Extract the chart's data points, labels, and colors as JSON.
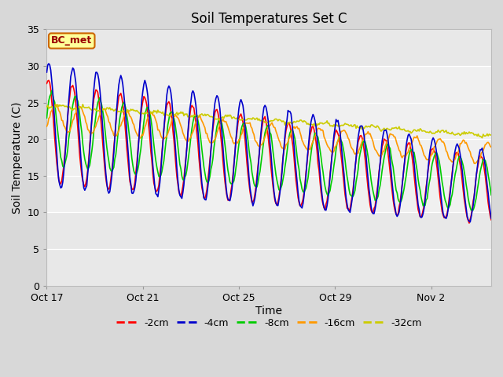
{
  "title": "Soil Temperatures Set C",
  "xlabel": "Time",
  "ylabel": "Soil Temperature (C)",
  "ylim": [
    0,
    35
  ],
  "yticks": [
    0,
    5,
    10,
    15,
    20,
    25,
    30,
    35
  ],
  "legend_labels": [
    "-2cm",
    "-4cm",
    "-8cm",
    "-16cm",
    "-32cm"
  ],
  "legend_colors": [
    "#ff0000",
    "#0000cc",
    "#00cc00",
    "#ff9900",
    "#cccc00"
  ],
  "annotation_text": "BC_met",
  "annotation_bg": "#ffff99",
  "annotation_border": "#cc6600",
  "fig_bg": "#d8d8d8",
  "axes_bg": "#e8e8e8",
  "inner_band_color": "#d0d0d0",
  "line_width": 1.2,
  "xtick_labels": [
    "Oct 17",
    "Oct 21",
    "Oct 25",
    "Oct 29",
    "Nov 2"
  ],
  "xtick_positions": [
    0,
    4,
    8,
    12,
    16
  ],
  "n_days": 18.5,
  "seed": 0
}
